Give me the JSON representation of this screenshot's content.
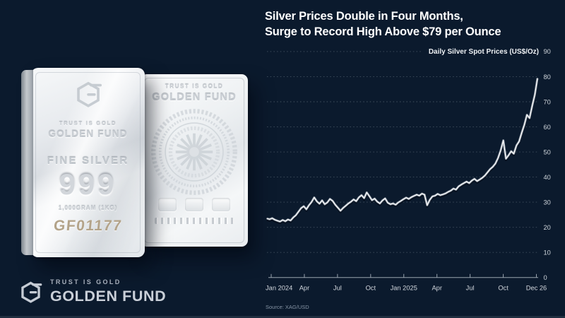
{
  "colors": {
    "background": "#0b1a2d",
    "headline_text": "#ffffff",
    "chart_line": "#fbfcfd",
    "serial_gold": "#b3a389",
    "brand_silver": "#c9cfd8"
  },
  "header": {
    "title_line1": "Silver Prices Double in Four Months,",
    "title_line2": "Surge to Record High Above $79 per Ounce"
  },
  "bars": {
    "front": {
      "tagline": "TRUST IS GOLD",
      "brand": "GOLDEN FUND",
      "purity_label": "FINE SILVER",
      "purity": "999",
      "weight": "1,000GRAM (1KG)",
      "serial": "GF01177"
    },
    "back": {
      "tagline": "TRUST IS GOLD",
      "brand": "GOLDEN FUND"
    }
  },
  "footer_brand": {
    "tagline": "TRUST IS GOLD",
    "name": "GOLDEN FUND"
  },
  "chart_data": {
    "type": "line",
    "title": "Daily Silver Spot Prices (US$/Oz)",
    "source": "Source: XAG/USD",
    "x_tick_labels": [
      "Jan 2024",
      "Apr",
      "Jul",
      "Oct",
      "Jan 2025",
      "Apr",
      "Jul",
      "Oct",
      "Dec 26"
    ],
    "y_ticks": [
      0,
      10,
      20,
      30,
      40,
      50,
      60,
      70,
      80,
      90
    ],
    "ylim": [
      0,
      90
    ],
    "grid": "dotted-horizontal",
    "legend_position": "top-right-label",
    "peak_value": 79.3,
    "values": [
      23.5,
      23.2,
      23.6,
      23.0,
      22.6,
      22.3,
      22.9,
      22.4,
      23.1,
      22.7,
      23.9,
      24.8,
      26.2,
      27.6,
      28.4,
      27.2,
      28.8,
      30.1,
      31.9,
      30.3,
      29.4,
      30.7,
      29.2,
      29.9,
      31.3,
      30.5,
      29.0,
      27.8,
      26.6,
      27.7,
      28.6,
      29.5,
      30.2,
      31.1,
      30.4,
      31.9,
      32.8,
      31.6,
      33.9,
      32.4,
      30.8,
      31.4,
      30.2,
      29.5,
      30.7,
      31.5,
      29.8,
      29.2,
      29.5,
      29.0,
      29.9,
      30.5,
      31.2,
      31.8,
      31.3,
      32.0,
      32.5,
      33.0,
      32.6,
      33.4,
      33.0,
      28.8,
      30.9,
      32.3,
      32.6,
      33.3,
      32.8,
      33.1,
      33.5,
      34.1,
      34.6,
      35.4,
      35.0,
      36.3,
      37.0,
      37.6,
      38.2,
      37.6,
      38.6,
      39.3,
      38.4,
      39.0,
      39.7,
      40.6,
      41.9,
      43.2,
      44.1,
      45.4,
      47.6,
      50.6,
      54.6,
      47.3,
      48.7,
      50.3,
      49.3,
      52.6,
      54.2,
      57.6,
      60.8,
      64.8,
      63.5,
      68.4,
      72.8,
      79.3
    ]
  }
}
